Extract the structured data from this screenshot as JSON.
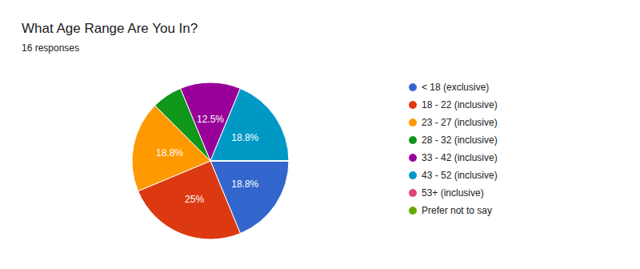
{
  "chart_data": {
    "type": "pie",
    "title": "What Age Range Are You In?",
    "subtitle": "16 responses",
    "categories": [
      "< 18 (exclusive)",
      "18 - 22 (inclusive)",
      "23 - 27 (inclusive)",
      "28 - 32 (inclusive)",
      "33 - 42 (inclusive)",
      "43 - 52 (inclusive)",
      "53+ (inclusive)",
      "Prefer not to say"
    ],
    "values": [
      18.8,
      25,
      18.8,
      6.3,
      12.5,
      18.8,
      0,
      0
    ],
    "value_labels": [
      "18.8%",
      "25%",
      "18.8%",
      null,
      "12.5%",
      "18.8%",
      null,
      null
    ],
    "colors": [
      "#3366cc",
      "#dc3912",
      "#ff9900",
      "#109618",
      "#990099",
      "#0099c6",
      "#dd4477",
      "#66aa00"
    ],
    "data_labels": true,
    "legend": "right"
  }
}
